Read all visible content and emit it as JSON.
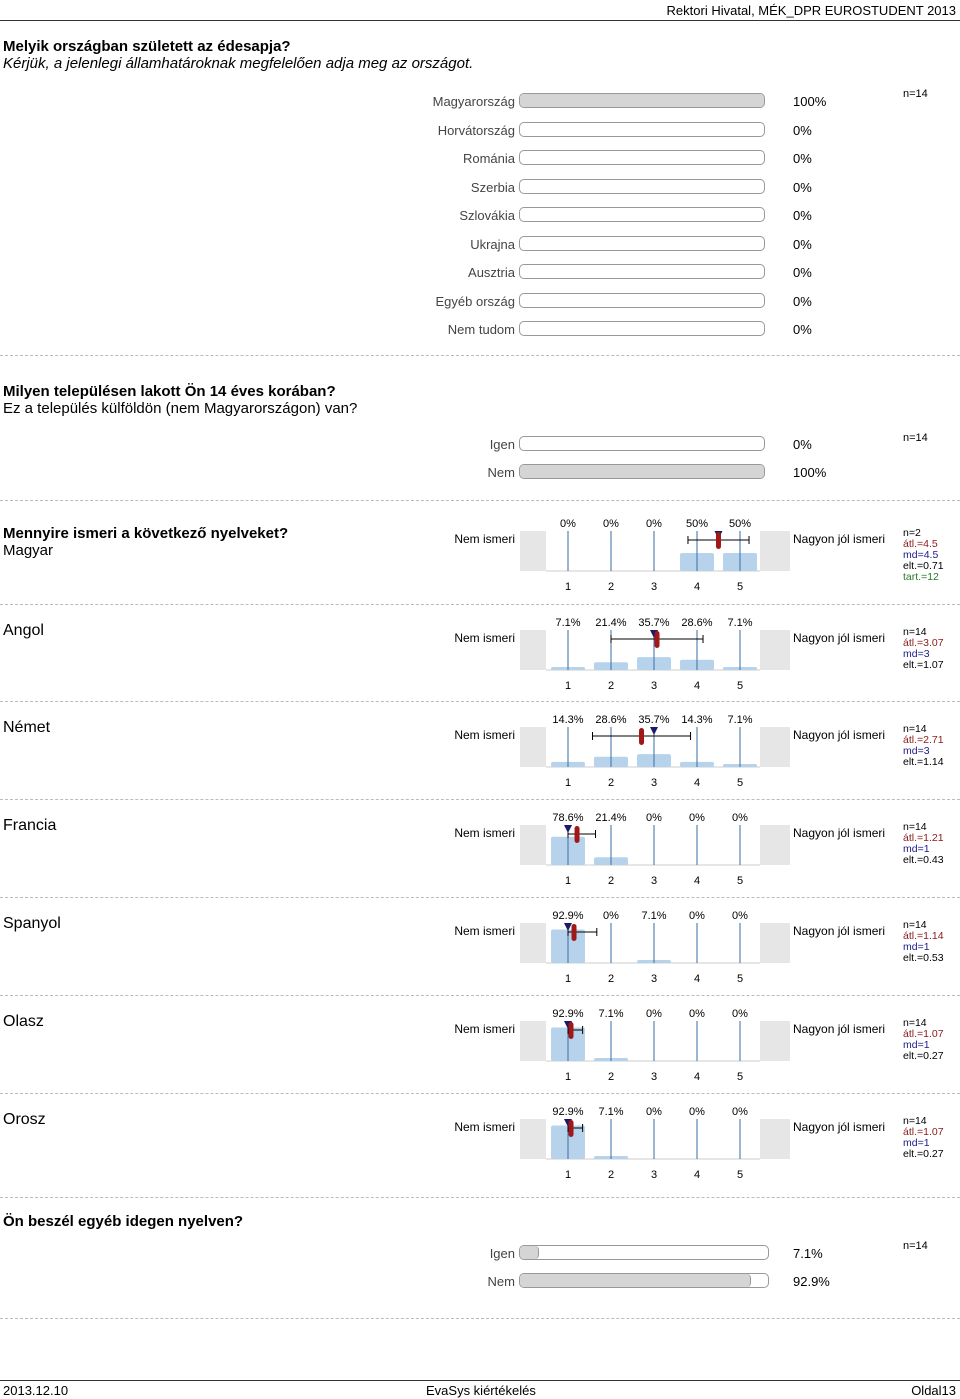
{
  "header": {
    "text": "Rektori Hivatal, MÉK_DPR EUROSTUDENT 2013"
  },
  "q1": {
    "title": "Melyik országban született az édesapja?",
    "subtitle": "Kérjük, a jelenlegi államhatároknak megfelelően adja meg az országot.",
    "n": "n=14",
    "rows": [
      {
        "label": "Magyarország",
        "pct": "100%",
        "value": 100
      },
      {
        "label": "Horvátország",
        "pct": "0%",
        "value": 0
      },
      {
        "label": "Románia",
        "pct": "0%",
        "value": 0
      },
      {
        "label": "Szerbia",
        "pct": "0%",
        "value": 0
      },
      {
        "label": "Szlovákia",
        "pct": "0%",
        "value": 0
      },
      {
        "label": "Ukrajna",
        "pct": "0%",
        "value": 0
      },
      {
        "label": "Ausztria",
        "pct": "0%",
        "value": 0
      },
      {
        "label": "Egyéb ország",
        "pct": "0%",
        "value": 0
      },
      {
        "label": "Nem tudom",
        "pct": "0%",
        "value": 0
      }
    ]
  },
  "q2": {
    "title": "Milyen településen lakott Ön 14 éves korában?",
    "subtitle": "Ez a település külföldön (nem Magyarországon) van?",
    "n": "n=14",
    "rows": [
      {
        "label": "Igen",
        "pct": "0%",
        "value": 0
      },
      {
        "label": "Nem",
        "pct": "100%",
        "value": 100
      }
    ]
  },
  "q3": {
    "title": "Mennyire ismeri a következő nyelveket?",
    "left_label": "Nem ismeri",
    "right_label": "Nagyon jól ismeri",
    "scale": [
      "1",
      "2",
      "3",
      "4",
      "5"
    ],
    "langs": [
      {
        "name": "Magyar",
        "pcts": [
          "0%",
          "0%",
          "0%",
          "50%",
          "50%"
        ],
        "values": [
          0,
          0,
          0,
          50,
          50
        ],
        "mean": 4.5,
        "median": 4.5,
        "sd": 0.71,
        "stats": {
          "n": "n=2",
          "atl": "átl.=4.5",
          "md": "md=4.5",
          "elt": "elt.=0.71",
          "tart": "tart.=12"
        }
      },
      {
        "name": "Angol",
        "pcts": [
          "7.1%",
          "21.4%",
          "35.7%",
          "28.6%",
          "7.1%"
        ],
        "values": [
          7.1,
          21.4,
          35.7,
          28.6,
          7.1
        ],
        "mean": 3.07,
        "median": 3,
        "sd": 1.07,
        "stats": {
          "n": "n=14",
          "atl": "átl.=3.07",
          "md": "md=3",
          "elt": "elt.=1.07",
          "tart": ""
        }
      },
      {
        "name": "Német",
        "pcts": [
          "14.3%",
          "28.6%",
          "35.7%",
          "14.3%",
          "7.1%"
        ],
        "values": [
          14.3,
          28.6,
          35.7,
          14.3,
          7.1
        ],
        "mean": 2.71,
        "median": 3,
        "sd": 1.14,
        "stats": {
          "n": "n=14",
          "atl": "átl.=2.71",
          "md": "md=3",
          "elt": "elt.=1.14",
          "tart": ""
        }
      },
      {
        "name": "Francia",
        "pcts": [
          "78.6%",
          "21.4%",
          "0%",
          "0%",
          "0%"
        ],
        "values": [
          78.6,
          21.4,
          0,
          0,
          0
        ],
        "mean": 1.21,
        "median": 1,
        "sd": 0.43,
        "stats": {
          "n": "n=14",
          "atl": "átl.=1.21",
          "md": "md=1",
          "elt": "elt.=0.43",
          "tart": ""
        }
      },
      {
        "name": "Spanyol",
        "pcts": [
          "92.9%",
          "0%",
          "7.1%",
          "0%",
          "0%"
        ],
        "values": [
          92.9,
          0,
          7.1,
          0,
          0
        ],
        "mean": 1.14,
        "median": 1,
        "sd": 0.53,
        "stats": {
          "n": "n=14",
          "atl": "átl.=1.14",
          "md": "md=1",
          "elt": "elt.=0.53",
          "tart": ""
        }
      },
      {
        "name": "Olasz",
        "pcts": [
          "92.9%",
          "7.1%",
          "0%",
          "0%",
          "0%"
        ],
        "values": [
          92.9,
          7.1,
          0,
          0,
          0
        ],
        "mean": 1.07,
        "median": 1,
        "sd": 0.27,
        "stats": {
          "n": "n=14",
          "atl": "átl.=1.07",
          "md": "md=1",
          "elt": "elt.=0.27",
          "tart": ""
        }
      },
      {
        "name": "Orosz",
        "pcts": [
          "92.9%",
          "7.1%",
          "0%",
          "0%",
          "0%"
        ],
        "values": [
          92.9,
          7.1,
          0,
          0,
          0
        ],
        "mean": 1.07,
        "median": 1,
        "sd": 0.27,
        "stats": {
          "n": "n=14",
          "atl": "átl.=1.07",
          "md": "md=1",
          "elt": "elt.=0.27",
          "tart": ""
        }
      }
    ]
  },
  "q4": {
    "title": "Ön beszél egyéb idegen nyelven?",
    "n": "n=14",
    "rows": [
      {
        "label": "Igen",
        "pct": "7.1%",
        "value": 7.1
      },
      {
        "label": "Nem",
        "pct": "92.9%",
        "value": 92.9
      }
    ]
  },
  "footer": {
    "left": "2013.12.10",
    "center": "EvaSys kiértékelés",
    "right": "Oldal13"
  },
  "chart_data": [
    {
      "type": "bar",
      "title": "Melyik országban született az édesapja?",
      "categories": [
        "Magyarország",
        "Horvátország",
        "Románia",
        "Szerbia",
        "Szlovákia",
        "Ukrajna",
        "Ausztria",
        "Egyéb ország",
        "Nem tudom"
      ],
      "values": [
        100,
        0,
        0,
        0,
        0,
        0,
        0,
        0,
        0
      ],
      "ylim": [
        0,
        100
      ]
    },
    {
      "type": "bar",
      "title": "Milyen településen lakott Ön 14 éves korában?",
      "categories": [
        "Igen",
        "Nem"
      ],
      "values": [
        0,
        100
      ],
      "ylim": [
        0,
        100
      ]
    },
    {
      "type": "bar",
      "title": "Mennyire ismeri a következő nyelveket?",
      "categories": [
        "1",
        "2",
        "3",
        "4",
        "5"
      ],
      "series": [
        {
          "name": "Magyar",
          "values": [
            0,
            0,
            0,
            50,
            50
          ]
        },
        {
          "name": "Angol",
          "values": [
            7.1,
            21.4,
            35.7,
            28.6,
            7.1
          ]
        },
        {
          "name": "Német",
          "values": [
            14.3,
            28.6,
            35.7,
            14.3,
            7.1
          ]
        },
        {
          "name": "Francia",
          "values": [
            78.6,
            21.4,
            0,
            0,
            0
          ]
        },
        {
          "name": "Spanyol",
          "values": [
            92.9,
            0,
            7.1,
            0,
            0
          ]
        },
        {
          "name": "Olasz",
          "values": [
            92.9,
            7.1,
            0,
            0,
            0
          ]
        },
        {
          "name": "Orosz",
          "values": [
            92.9,
            7.1,
            0,
            0,
            0
          ]
        }
      ],
      "ylim": [
        0,
        100
      ]
    },
    {
      "type": "bar",
      "title": "Ön beszél egyéb idegen nyelven?",
      "categories": [
        "Igen",
        "Nem"
      ],
      "values": [
        7.1,
        92.9
      ],
      "ylim": [
        0,
        100
      ]
    }
  ]
}
